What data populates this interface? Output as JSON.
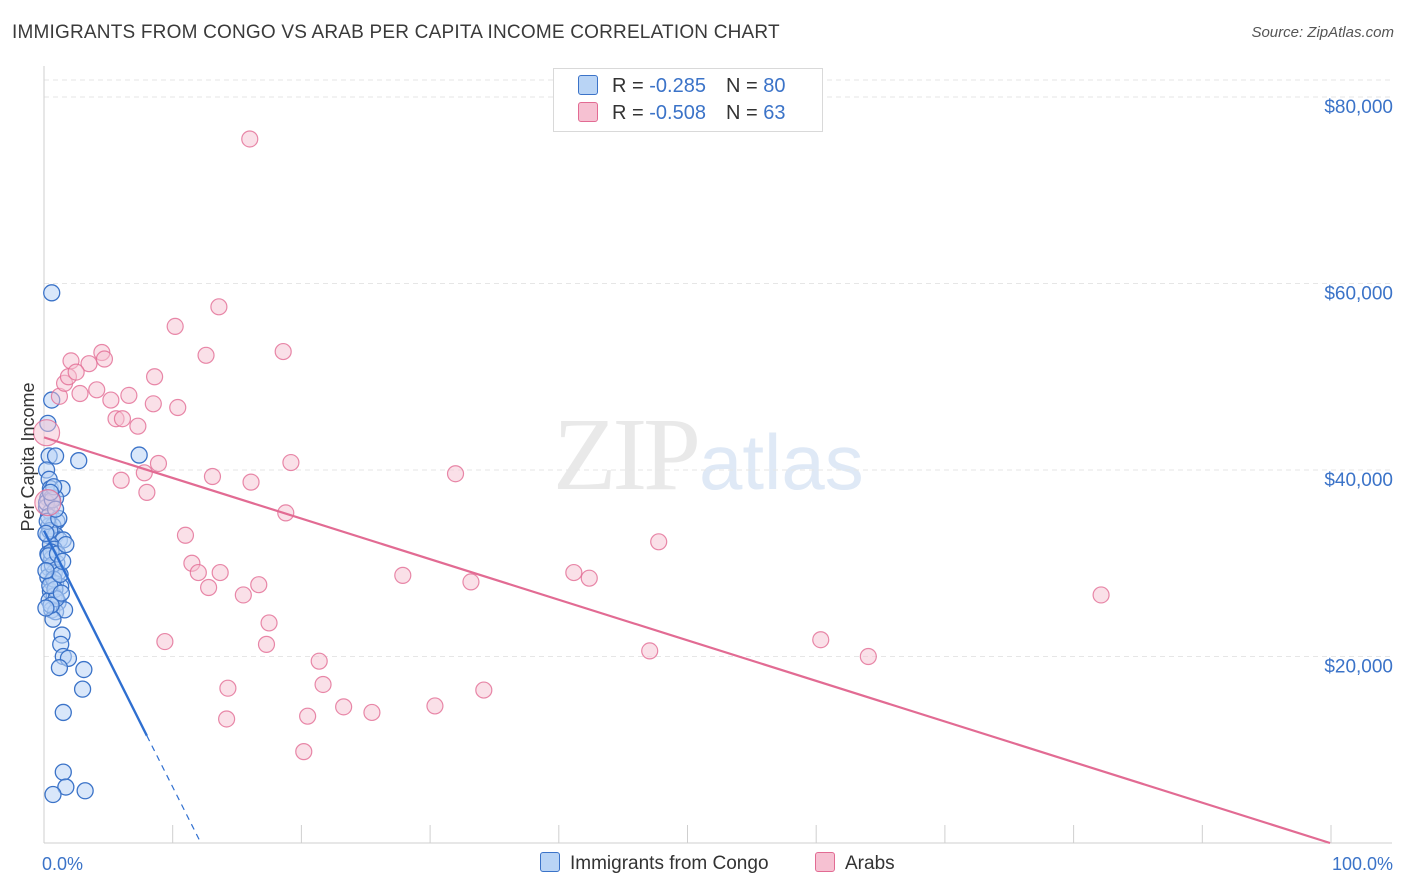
{
  "title": "IMMIGRANTS FROM CONGO VS ARAB PER CAPITA INCOME CORRELATION CHART",
  "source": "Source: ZipAtlas.com",
  "watermark": {
    "zip": "ZIP",
    "atlas": "atlas"
  },
  "colors": {
    "blue": "#3b73c8",
    "blue_fill": "#b9d4f5",
    "blue_line": "#2f6fd0",
    "pink": "#e26b93",
    "pink_fill": "#f6c1d2",
    "grid": "#e6e6e6"
  },
  "legend": {
    "rows": [
      {
        "r_label": "R = ",
        "r_value": "-0.285",
        "n_label": "N = ",
        "n_value": "80"
      },
      {
        "r_label": "R = ",
        "r_value": "-0.508",
        "n_label": "N = ",
        "n_value": "63"
      }
    ]
  },
  "bottom_legend": [
    "Immigrants from Congo",
    "Arabs"
  ],
  "chart_data": {
    "type": "scatter",
    "title": "IMMIGRANTS FROM CONGO VS ARAB PER CAPITA INCOME CORRELATION CHART",
    "xlabel": "",
    "ylabel": "Per Capita Income",
    "xlim": [
      0,
      100
    ],
    "ylim": [
      0,
      80000
    ],
    "x_tick_labels": [
      "0.0%",
      "100.0%"
    ],
    "y_ticks": [
      20000,
      40000,
      60000,
      80000
    ],
    "y_tick_labels": [
      "$20,000",
      "$40,000",
      "$60,000",
      "$80,000"
    ],
    "series": [
      {
        "name": "Immigrants from Congo",
        "color": "#3b73c8",
        "R": -0.285,
        "N": 80,
        "trend": {
          "x": [
            0.0,
            8.0
          ],
          "y": [
            33500,
            11500
          ],
          "dashed_extension": {
            "x": [
              8.0,
              12.2
            ],
            "y": [
              11500,
              0
            ]
          }
        },
        "points": [
          [
            0.6,
            59000
          ],
          [
            0.3,
            45000
          ],
          [
            0.6,
            47500
          ],
          [
            0.4,
            41500
          ],
          [
            0.9,
            41500
          ],
          [
            2.7,
            41000
          ],
          [
            7.4,
            41600
          ],
          [
            0.2,
            40000
          ],
          [
            0.4,
            39000
          ],
          [
            0.5,
            38000
          ],
          [
            1.4,
            38000
          ],
          [
            0.3,
            37000
          ],
          [
            0.6,
            37000
          ],
          [
            0.9,
            37000
          ],
          [
            0.2,
            36000
          ],
          [
            0.5,
            35500
          ],
          [
            1.0,
            34500
          ],
          [
            0.4,
            34000
          ],
          [
            0.7,
            34000
          ],
          [
            0.3,
            33000
          ],
          [
            0.9,
            33000
          ],
          [
            1.2,
            32500
          ],
          [
            1.5,
            32500
          ],
          [
            0.5,
            32000
          ],
          [
            0.8,
            31500
          ],
          [
            0.3,
            31000
          ],
          [
            0.6,
            30500
          ],
          [
            1.0,
            30000
          ],
          [
            0.4,
            29500
          ],
          [
            0.8,
            29000
          ],
          [
            1.1,
            29000
          ],
          [
            0.3,
            28500
          ],
          [
            0.6,
            28000
          ],
          [
            0.9,
            27800
          ],
          [
            1.3,
            27500
          ],
          [
            0.5,
            27000
          ],
          [
            0.8,
            26500
          ],
          [
            0.4,
            26000
          ],
          [
            1.1,
            25800
          ],
          [
            0.6,
            25000
          ],
          [
            0.9,
            24800
          ],
          [
            1.6,
            25000
          ],
          [
            0.7,
            24000
          ],
          [
            1.4,
            22300
          ],
          [
            1.3,
            21300
          ],
          [
            1.5,
            20000
          ],
          [
            1.9,
            19800
          ],
          [
            3.1,
            18600
          ],
          [
            1.2,
            18800
          ],
          [
            3.0,
            16500
          ],
          [
            1.5,
            14000
          ],
          [
            1.5,
            7600
          ],
          [
            1.7,
            6000
          ],
          [
            3.2,
            5600
          ],
          [
            0.7,
            5200
          ],
          [
            0.2,
            36500
          ],
          [
            0.35,
            35000
          ],
          [
            0.45,
            33500
          ],
          [
            0.55,
            31200
          ],
          [
            0.65,
            29800
          ],
          [
            0.75,
            28300
          ],
          [
            0.85,
            27200
          ],
          [
            0.95,
            26200
          ],
          [
            0.25,
            34500
          ],
          [
            0.35,
            30800
          ],
          [
            0.45,
            27600
          ],
          [
            0.55,
            25500
          ],
          [
            0.65,
            36800
          ],
          [
            0.75,
            38200
          ],
          [
            1.05,
            31000
          ],
          [
            1.25,
            28800
          ],
          [
            1.35,
            26800
          ],
          [
            0.15,
            33200
          ],
          [
            0.15,
            29200
          ],
          [
            0.15,
            25200
          ],
          [
            1.15,
            34800
          ],
          [
            1.45,
            30200
          ],
          [
            0.5,
            37600
          ],
          [
            0.9,
            35800
          ],
          [
            1.7,
            32000
          ]
        ]
      },
      {
        "name": "Arabs",
        "color": "#e26b93",
        "R": -0.508,
        "N": 63,
        "trend": {
          "x": [
            0.0,
            100.0
          ],
          "y": [
            43500,
            0
          ]
        },
        "points": [
          [
            0.2,
            44000
          ],
          [
            0.3,
            36500
          ],
          [
            1.2,
            47900
          ],
          [
            1.6,
            49300
          ],
          [
            2.1,
            51700
          ],
          [
            2.8,
            48200
          ],
          [
            1.9,
            50000
          ],
          [
            3.5,
            51400
          ],
          [
            4.5,
            52600
          ],
          [
            4.7,
            51900
          ],
          [
            4.1,
            48600
          ],
          [
            5.2,
            47500
          ],
          [
            5.6,
            45500
          ],
          [
            6.6,
            48000
          ],
          [
            6.1,
            45500
          ],
          [
            7.3,
            44700
          ],
          [
            8.5,
            47100
          ],
          [
            8.6,
            50000
          ],
          [
            10.4,
            46700
          ],
          [
            10.2,
            55400
          ],
          [
            12.6,
            52300
          ],
          [
            13.6,
            57500
          ],
          [
            16.0,
            75500
          ],
          [
            18.6,
            52700
          ],
          [
            8.9,
            40700
          ],
          [
            7.8,
            39700
          ],
          [
            6.0,
            38900
          ],
          [
            8.0,
            37600
          ],
          [
            13.1,
            39300
          ],
          [
            16.1,
            38700
          ],
          [
            18.8,
            35400
          ],
          [
            19.2,
            40800
          ],
          [
            11.0,
            33000
          ],
          [
            11.5,
            30000
          ],
          [
            12.0,
            29000
          ],
          [
            12.8,
            27400
          ],
          [
            13.7,
            29000
          ],
          [
            15.5,
            26600
          ],
          [
            16.7,
            27700
          ],
          [
            17.3,
            21300
          ],
          [
            17.5,
            23600
          ],
          [
            9.4,
            21600
          ],
          [
            21.4,
            19500
          ],
          [
            21.7,
            17000
          ],
          [
            14.3,
            16600
          ],
          [
            14.2,
            13300
          ],
          [
            20.5,
            13600
          ],
          [
            23.3,
            14600
          ],
          [
            25.5,
            14000
          ],
          [
            20.2,
            9800
          ],
          [
            27.9,
            28700
          ],
          [
            30.4,
            14700
          ],
          [
            34.2,
            16400
          ],
          [
            32.0,
            39600
          ],
          [
            33.2,
            28000
          ],
          [
            41.2,
            29000
          ],
          [
            42.4,
            28400
          ],
          [
            47.1,
            20600
          ],
          [
            47.8,
            32300
          ],
          [
            60.4,
            21800
          ],
          [
            64.1,
            20000
          ],
          [
            82.2,
            26600
          ],
          [
            2.5,
            50500
          ]
        ]
      }
    ]
  }
}
